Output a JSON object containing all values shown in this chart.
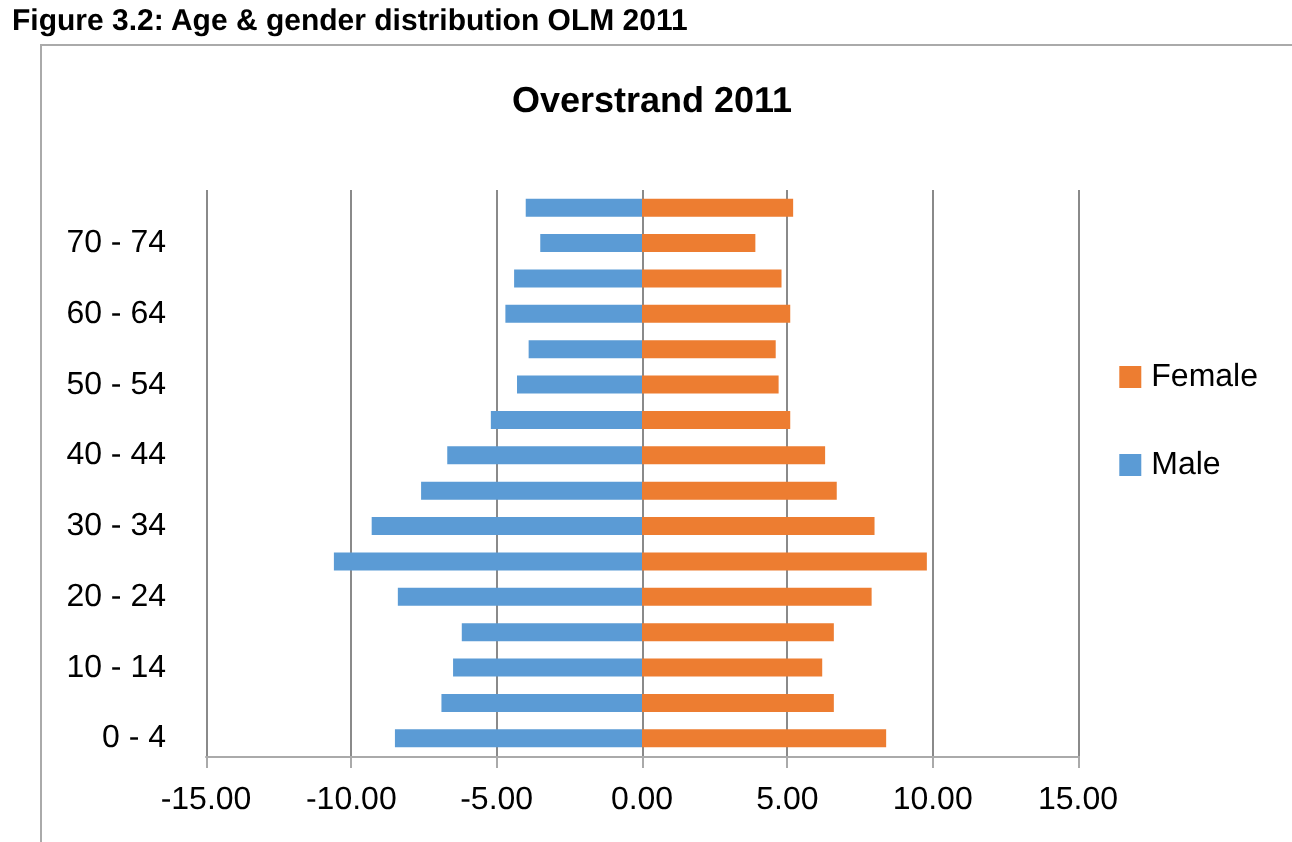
{
  "chart_data": {
    "type": "bar",
    "orientation": "horizontal",
    "stacked": true,
    "title": "Overstrand 2011",
    "annotations": [
      "Figure 3.2: Age & gender distribution OLM 2011"
    ],
    "categories": [
      null,
      "70 - 74",
      null,
      "60 - 64",
      null,
      "50 - 54",
      null,
      "40 - 44",
      null,
      "30 - 34",
      null,
      "20 - 24",
      null,
      "10 - 14",
      null,
      "0 - 4"
    ],
    "series": [
      {
        "name": "Female",
        "color": "#ed7d31",
        "values": [
          5.2,
          3.9,
          4.8,
          5.1,
          4.6,
          4.7,
          5.1,
          6.3,
          6.7,
          8.0,
          9.8,
          7.9,
          6.6,
          6.2,
          6.6,
          8.4
        ]
      },
      {
        "name": "Male",
        "color": "#5b9bd5",
        "values": [
          -4.0,
          -3.5,
          -4.4,
          -4.7,
          -3.9,
          -4.3,
          -5.2,
          -6.7,
          -7.6,
          -9.3,
          -10.6,
          -8.4,
          -6.2,
          -6.5,
          -6.9,
          -8.5
        ]
      }
    ],
    "xlim": [
      -15,
      15
    ],
    "xticks": [
      {
        "value": -15,
        "label": "-15.00"
      },
      {
        "value": -10,
        "label": "-10.00"
      },
      {
        "value": -5,
        "label": "-5.00"
      },
      {
        "value": 0,
        "label": "0.00"
      },
      {
        "value": 5,
        "label": "5.00"
      },
      {
        "value": 10,
        "label": "10.00"
      },
      {
        "value": 15,
        "label": "15.00"
      }
    ],
    "grid": "x",
    "legend": "right"
  }
}
